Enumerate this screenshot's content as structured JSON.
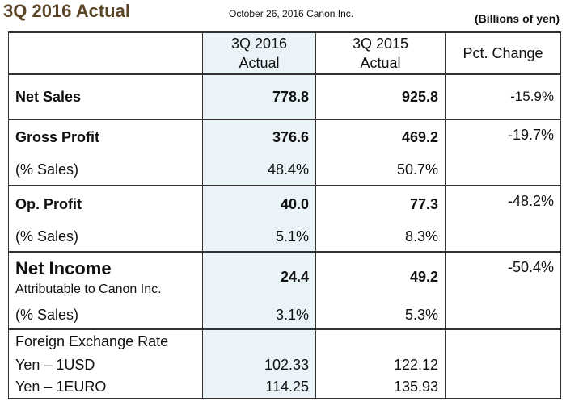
{
  "header": {
    "title": "3Q 2016 Actual",
    "date_line": "October 26, 2016 Canon Inc.",
    "units": "(Billions of yen)"
  },
  "columns": {
    "col1_line1": "3Q 2016",
    "col1_line2": "Actual",
    "col2_line1": "3Q 2015",
    "col2_line2": "Actual",
    "col3": "Pct.  Change"
  },
  "rows": {
    "net_sales": {
      "label": "Net Sales",
      "v2016": "778.8",
      "v2015": "925.8",
      "change": "-15.9%"
    },
    "gross_profit": {
      "label": "Gross Profit",
      "v2016": "376.6",
      "v2015": "469.2",
      "change": "-19.7%",
      "pct_label": "(% Sales)",
      "pct2016": "48.4%",
      "pct2015": "50.7%"
    },
    "op_profit": {
      "label": "Op. Profit",
      "v2016": "40.0",
      "v2015": "77.3",
      "change": "-48.2%",
      "pct_label": "(% Sales)",
      "pct2016": "5.1%",
      "pct2015": "8.3%"
    },
    "net_income": {
      "label": "Net Income",
      "sublabel": "Attributable to Canon Inc.",
      "v2016": "24.4",
      "v2015": "49.2",
      "change": "-50.4%",
      "pct_label": "(% Sales)",
      "pct2016": "3.1%",
      "pct2015": "5.3%"
    }
  },
  "fx": {
    "heading": "Foreign Exchange Rate",
    "usd": {
      "label": "Yen – 1USD",
      "v2016": "102.33",
      "v2015": "122.12"
    },
    "euro": {
      "label": "Yen – 1EURO",
      "v2016": "114.25",
      "v2015": "135.93"
    }
  }
}
